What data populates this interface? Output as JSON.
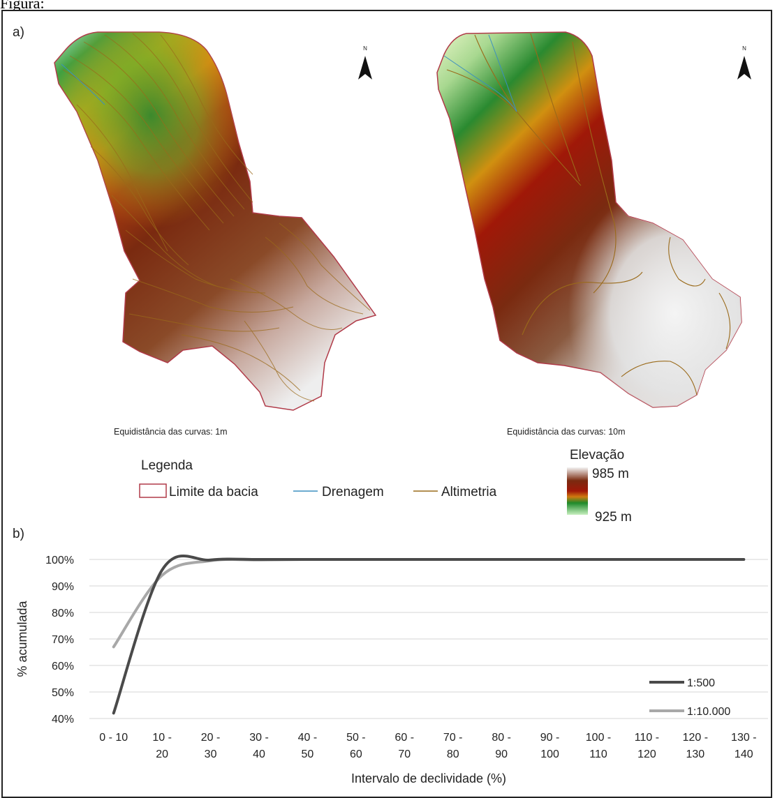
{
  "top_caption": "Figura:",
  "panel_a": {
    "label": "a)",
    "map_left_caption": "Equidistância das curvas: 1m",
    "map_right_caption": "Equidistância das curvas: 10m",
    "north_symbol": "N",
    "legend": {
      "title": "Legenda",
      "items": [
        {
          "label": "Limite da bacia",
          "symbol": "box",
          "color": "#b03a48"
        },
        {
          "label": "Drenagem",
          "symbol": "line",
          "color": "#3b8fc0"
        },
        {
          "label": "Altimetria",
          "symbol": "line",
          "color": "#9a6a1a"
        }
      ]
    },
    "elevation": {
      "title": "Elevação",
      "max_label": "985 m",
      "min_label": "925 m",
      "colors": [
        "#f2f2f2",
        "#7a2a10",
        "#a01808",
        "#d07a10",
        "#1e8a2a",
        "#b8e8b0"
      ]
    }
  },
  "panel_b": {
    "label": "b)",
    "chart_data": {
      "type": "line",
      "ylabel": "% acumulada",
      "xlabel": "Intervalo  de declividade  (%)",
      "categories": [
        "0 - 10",
        "10 - 20",
        "20 - 30",
        "30 - 40",
        "40 - 50",
        "50 - 60",
        "60 - 70",
        "70 - 80",
        "80 - 90",
        "90 - 100",
        "100 - 110",
        "110 - 120",
        "120 - 130",
        "130 - 140"
      ],
      "category_lines": [
        [
          "0 - 10",
          ""
        ],
        [
          "10 -",
          "20"
        ],
        [
          "20 -",
          "30"
        ],
        [
          "30 -",
          "40"
        ],
        [
          "40 -",
          "50"
        ],
        [
          "50 -",
          "60"
        ],
        [
          "60 -",
          "70"
        ],
        [
          "70 -",
          "80"
        ],
        [
          "80 -",
          "90"
        ],
        [
          "90 -",
          "100"
        ],
        [
          "100 -",
          "110"
        ],
        [
          "110 -",
          "120"
        ],
        [
          "120 -",
          "130"
        ],
        [
          "130 -",
          "140"
        ]
      ],
      "ylim": [
        40,
        100
      ],
      "yticks": [
        "40%",
        "50%",
        "60%",
        "70%",
        "80%",
        "90%",
        "100%"
      ],
      "grid": true,
      "legend_position": "bottom-right",
      "series": [
        {
          "name": "1:500",
          "color": "#4a4a4a",
          "values": [
            42,
            96,
            99.8,
            100,
            100,
            100,
            100,
            100,
            100,
            100,
            100,
            100,
            100,
            100
          ]
        },
        {
          "name": "1:10.000",
          "color": "#a8a8a8",
          "values": [
            67,
            94,
            99.5,
            99.8,
            100,
            100,
            100,
            100,
            100,
            100,
            100,
            100,
            100,
            100
          ]
        }
      ]
    }
  }
}
